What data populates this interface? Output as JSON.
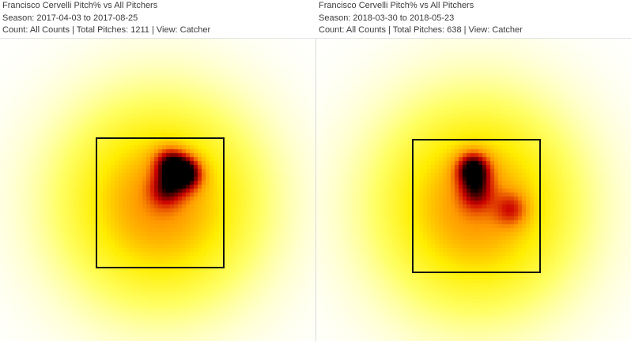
{
  "charts": [
    {
      "header": {
        "title": "Francisco Cervelli Pitch% vs All Pitchers",
        "season": "Season: 2017-04-03 to 2017-08-25",
        "details": "Count: All Counts | Total Pitches: 1211 | View: Catcher"
      }
    },
    {
      "header": {
        "title": "Francisco Cervelli Pitch% vs All Pitchers",
        "season": "Season: 2018-03-30 to 2018-05-23",
        "details": "Count: All Counts | Total Pitches: 638 | View: Catcher"
      }
    }
  ],
  "chart_data": [
    {
      "type": "heatmap",
      "title": "Francisco Cervelli Pitch% vs All Pitchers",
      "season": "2017-04-03 to 2017-08-25",
      "count": "All Counts",
      "total_pitches": 1211,
      "view": "Catcher",
      "strike_zone": true,
      "colorscale": [
        "#ffffff",
        "#ffff66",
        "#ffee00",
        "#ff9900",
        "#cc0000",
        "#000000"
      ],
      "hot_spots": [
        {
          "x": 0.4,
          "y": 0.45,
          "intensity": 1.0
        },
        {
          "x": 0.15,
          "y": 0.6,
          "intensity": 0.75
        },
        {
          "x": 0.1,
          "y": 0.2,
          "intensity": 0.55
        }
      ]
    },
    {
      "type": "heatmap",
      "title": "Francisco Cervelli Pitch% vs All Pitchers",
      "season": "2018-03-30 to 2018-05-23",
      "count": "All Counts",
      "total_pitches": 638,
      "view": "Catcher",
      "strike_zone": true,
      "colorscale": [
        "#ffffff",
        "#ffff66",
        "#ffee00",
        "#ff9900",
        "#cc0000",
        "#000000"
      ],
      "hot_spots": [
        {
          "x": -0.05,
          "y": 0.55,
          "intensity": 1.0
        },
        {
          "x": 0.55,
          "y": -0.05,
          "intensity": 0.45
        },
        {
          "x": 0.0,
          "y": 0.2,
          "intensity": 0.5
        }
      ]
    }
  ]
}
